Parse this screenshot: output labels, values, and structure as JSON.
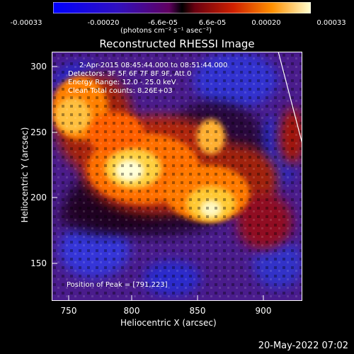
{
  "colorbar": {
    "tick_labels": [
      "-0.00033",
      "-0.00020",
      "-6.6e-05",
      "6.6e-05",
      "0.00020",
      "0.00033"
    ],
    "units_line": "(photons cm⁻² s⁻¹ asec⁻²)"
  },
  "plot": {
    "title": "Reconstructed RHESSI Image",
    "info_lines": [
      "2-Apr-2015 08:45:44.000 to 08:51:44.000",
      "Detectors: 3F 5F 6F 7F 8F 9F, Att 0",
      "Energy Range: 12.0 - 25.0 keV",
      "Clean    Total counts: 8.26E+03"
    ],
    "peak_label": "Position of Peak = [791,223]"
  },
  "axes": {
    "xlabel": "Heliocentric X (arcsec)",
    "ylabel": "Heliocentric Y (arcsec)",
    "xticks": [
      "750",
      "800",
      "850",
      "900"
    ],
    "yticks": [
      "300",
      "250",
      "200",
      "150"
    ]
  },
  "footer": {
    "timestamp": "20-May-2022 07:02"
  },
  "colors": {
    "background": "#000000",
    "text": "#ffffff"
  }
}
